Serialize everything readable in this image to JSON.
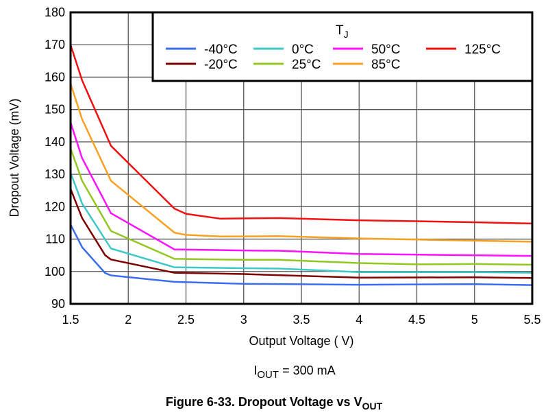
{
  "chart_data": {
    "type": "line",
    "title": "Figure 6-33. Dropout Voltage vs V",
    "title_sub": "OUT",
    "condition": {
      "main": "I",
      "sub": "OUT",
      "rest": " = 300 mA"
    },
    "xlabel": "Output Voltage ( V)",
    "ylabel": "Dropout Voltage (mV)",
    "xlim": [
      1.5,
      5.5
    ],
    "ylim": [
      90,
      180
    ],
    "xticks": [
      1.5,
      2,
      2.5,
      3,
      3.5,
      4,
      4.5,
      5,
      5.5
    ],
    "xtick_labels": [
      "1.5",
      "2",
      "2.5",
      "3",
      "3.5",
      "4",
      "4.5",
      "5",
      "5.5"
    ],
    "yticks": [
      90,
      100,
      110,
      120,
      130,
      140,
      150,
      160,
      170,
      180
    ],
    "ytick_labels": [
      "90",
      "100",
      "110",
      "120",
      "130",
      "140",
      "150",
      "160",
      "170",
      "180"
    ],
    "grid": true,
    "legend": {
      "title": "T",
      "title_sub": "J",
      "placement": "top-right"
    },
    "series": [
      {
        "name": "-40°C",
        "color": "#3a6cf0",
        "x": [
          1.5,
          1.6,
          1.8,
          1.85,
          2.4,
          3,
          4,
          5,
          5.5
        ],
        "y": [
          114.5,
          107.5,
          99.5,
          98.8,
          96.8,
          96.2,
          95.9,
          96.1,
          95.8
        ]
      },
      {
        "name": "-20°C",
        "color": "#800000",
        "x": [
          1.5,
          1.6,
          1.8,
          1.85,
          2.4,
          3,
          4,
          5,
          5.5
        ],
        "y": [
          125.5,
          116.5,
          105,
          103.7,
          99.6,
          99.2,
          98.1,
          98.2,
          98.0
        ]
      },
      {
        "name": "0°C",
        "color": "#3cc8c8",
        "x": [
          1.5,
          1.6,
          1.85,
          2.4,
          3,
          3.3,
          4,
          5,
          5.5
        ],
        "y": [
          130.5,
          121,
          107.1,
          101.3,
          101,
          100.9,
          99.8,
          99.8,
          99.6
        ]
      },
      {
        "name": "25°C",
        "color": "#90c820",
        "x": [
          1.5,
          1.6,
          1.85,
          2.4,
          3,
          3.3,
          4,
          4.5,
          5,
          5.5
        ],
        "y": [
          138,
          128,
          112.5,
          103.9,
          103.6,
          103.6,
          102.6,
          102.2,
          102.3,
          102.1
        ]
      },
      {
        "name": "50°C",
        "color": "#ff10ff",
        "x": [
          1.5,
          1.6,
          1.85,
          2.4,
          3,
          3.3,
          4,
          5,
          5.5
        ],
        "y": [
          146,
          135,
          118,
          106.8,
          106.5,
          106.4,
          105.4,
          105,
          104.8
        ]
      },
      {
        "name": "85°C",
        "color": "#f8a020",
        "x": [
          1.5,
          1.6,
          1.85,
          2.4,
          2.5,
          2.8,
          3.3,
          4,
          5,
          5.5
        ],
        "y": [
          158,
          147,
          128,
          112,
          111.3,
          110.8,
          110.9,
          110.2,
          109.5,
          109.2
        ]
      },
      {
        "name": "125°C",
        "color": "#f01010",
        "x": [
          1.5,
          1.6,
          1.85,
          2.4,
          2.5,
          2.8,
          3.3,
          4,
          5,
          5.5
        ],
        "y": [
          170,
          159,
          138.8,
          119.4,
          117.8,
          116.3,
          116.5,
          115.8,
          115.2,
          114.8
        ]
      }
    ]
  }
}
